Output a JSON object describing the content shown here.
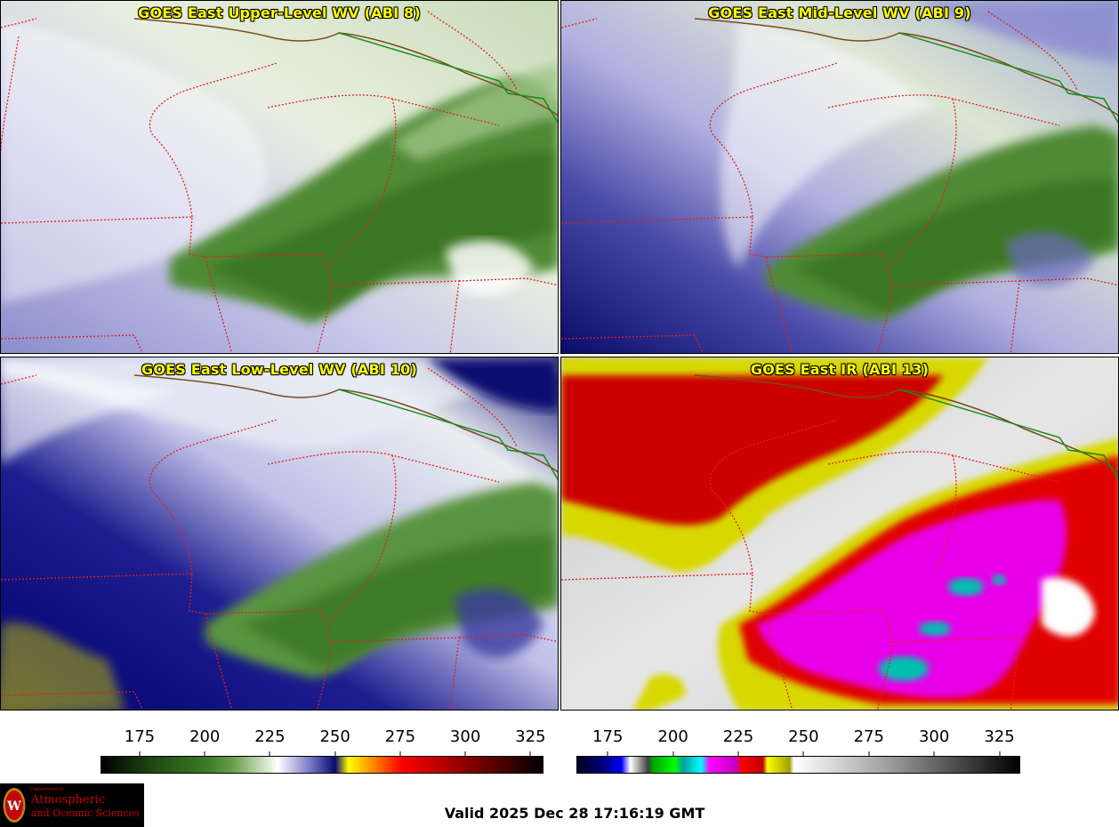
{
  "panels": [
    {
      "title": "GOES East Upper-Level WV (ABI 8)"
    },
    {
      "title": "GOES East Mid-Level WV (ABI 9)"
    },
    {
      "title": "GOES East Low-Level WV (ABI 10)"
    },
    {
      "title": "GOES East IR (ABI 13)"
    }
  ],
  "colorbars": {
    "left": {
      "ticks": [
        "175",
        "200",
        "225",
        "250",
        "275",
        "300",
        "325"
      ],
      "range": [
        160,
        330
      ],
      "stops": [
        [
          "#000000",
          0.0
        ],
        [
          "#1f4a12",
          0.12
        ],
        [
          "#3d7a25",
          0.24
        ],
        [
          "#6aa04c",
          0.3
        ],
        [
          "#ffffff",
          0.4
        ],
        [
          "#6a6cc0",
          0.48
        ],
        [
          "#0a0a70",
          0.53
        ],
        [
          "#ffff00",
          0.56
        ],
        [
          "#ff8000",
          0.62
        ],
        [
          "#ff0000",
          0.68
        ],
        [
          "#c00000",
          0.76
        ],
        [
          "#600000",
          0.88
        ],
        [
          "#000000",
          1.0
        ]
      ]
    },
    "right": {
      "ticks": [
        "175",
        "200",
        "225",
        "250",
        "275",
        "300",
        "325"
      ],
      "range": [
        163,
        333
      ],
      "stops": [
        [
          "#000020",
          0.0
        ],
        [
          "#000080",
          0.06
        ],
        [
          "#0000ff",
          0.1
        ],
        [
          "#ffffff",
          0.12
        ],
        [
          "#404040",
          0.16
        ],
        [
          "#00a000",
          0.17
        ],
        [
          "#00ff00",
          0.22
        ],
        [
          "#00a0a0",
          0.24
        ],
        [
          "#00ffff",
          0.28
        ],
        [
          "#ff00ff",
          0.3
        ],
        [
          "#c000c0",
          0.36
        ],
        [
          "#ff0000",
          0.37
        ],
        [
          "#c00000",
          0.42
        ],
        [
          "#ffff00",
          0.43
        ],
        [
          "#a0a000",
          0.48
        ],
        [
          "#ffffff",
          0.49
        ],
        [
          "#a0a0a0",
          0.7
        ],
        [
          "#404040",
          0.88
        ],
        [
          "#000000",
          1.0
        ]
      ]
    }
  },
  "logo": {
    "dept": "Department of",
    "line1": "Atmospheric",
    "line2": "and Oceanic Sciences"
  },
  "valid": "Valid 2025 Dec 28 17:16:19 GMT"
}
